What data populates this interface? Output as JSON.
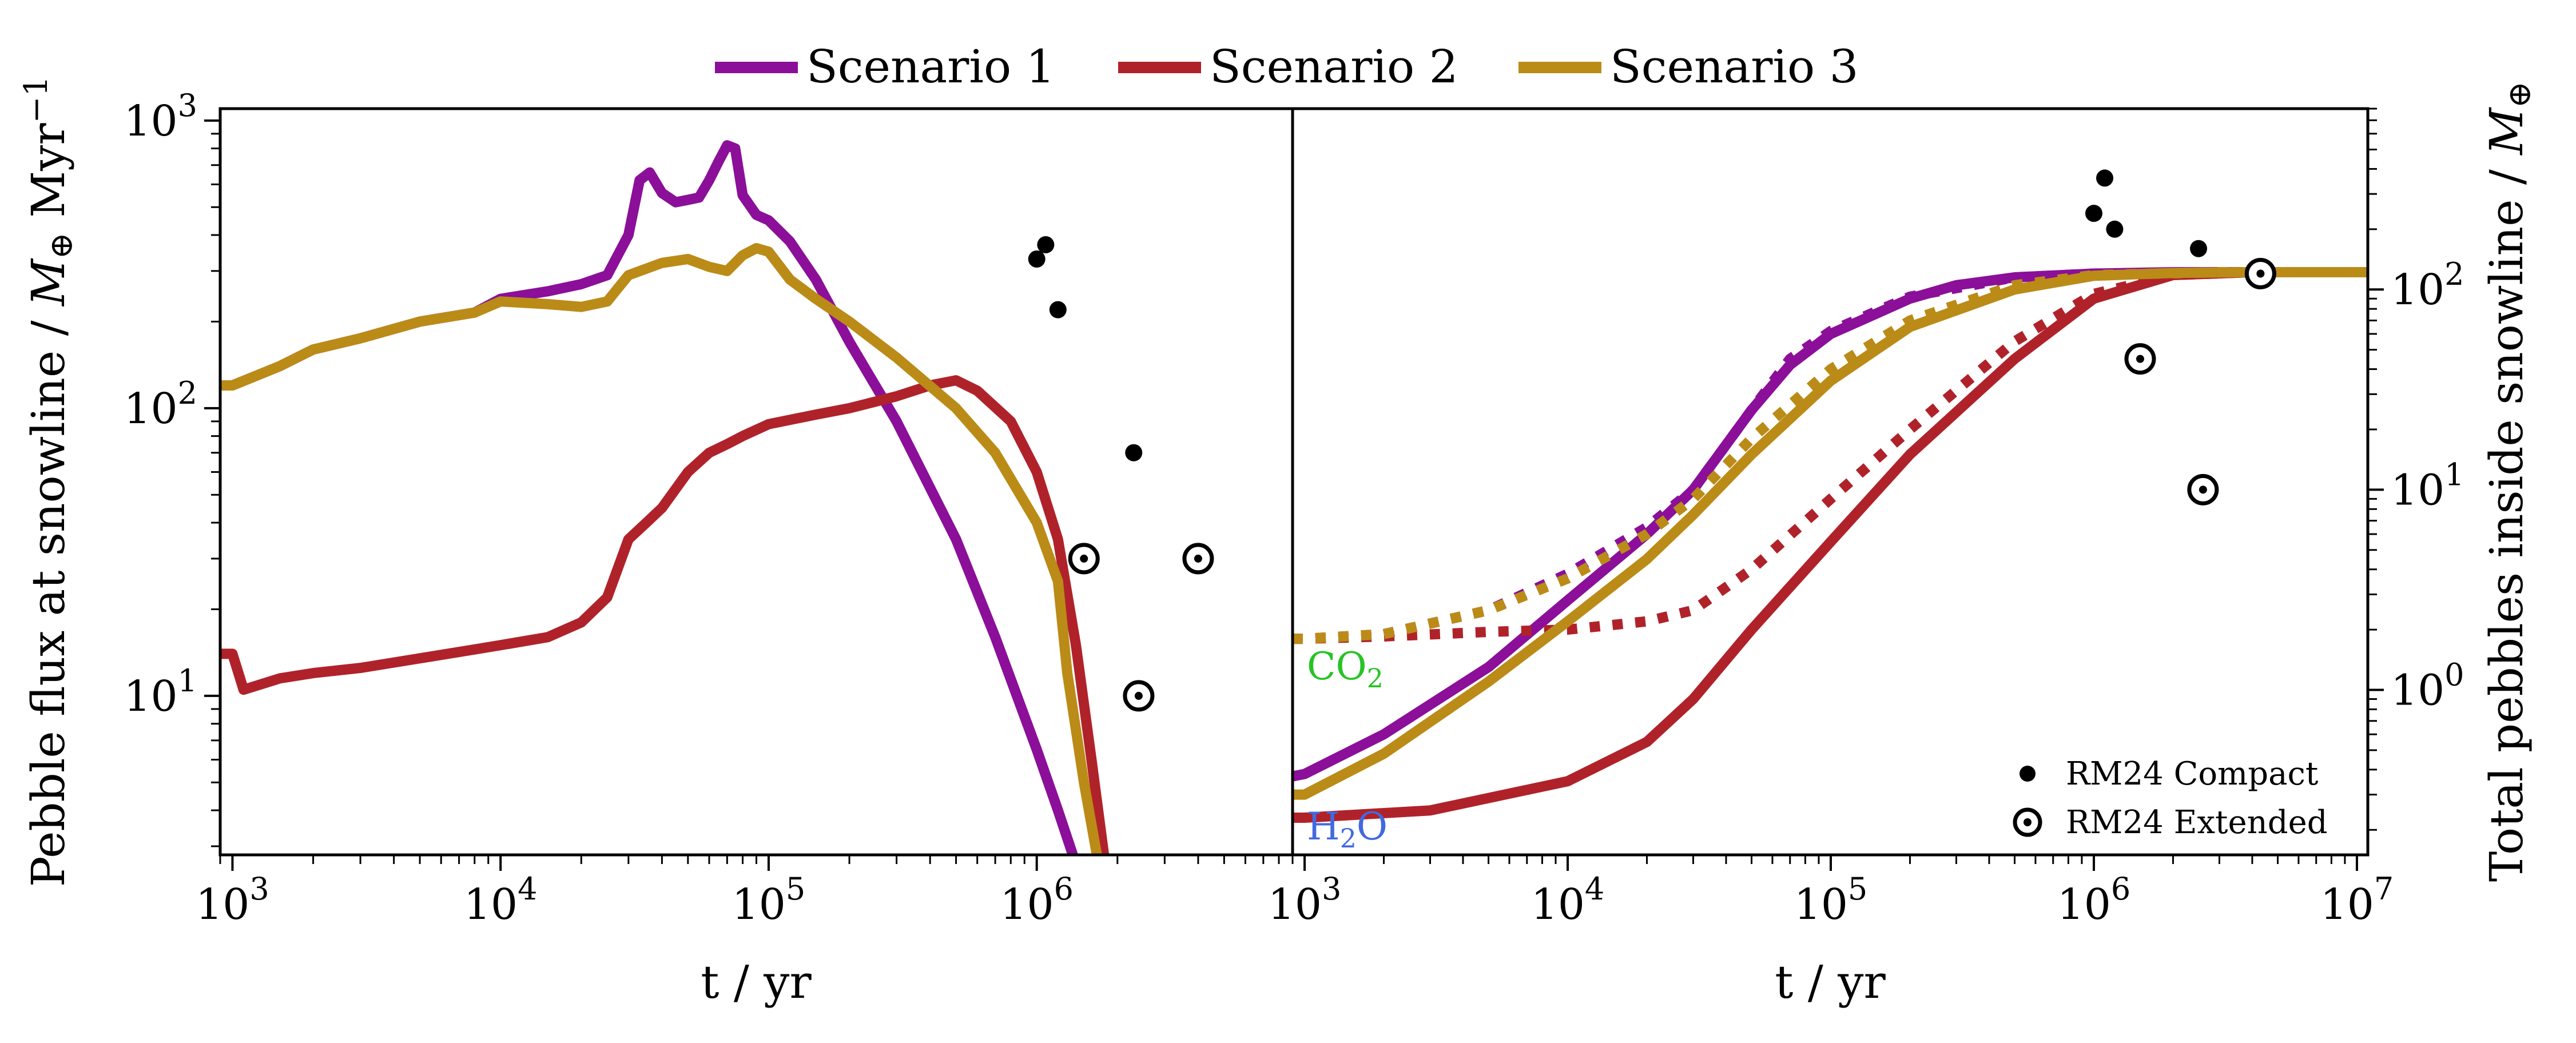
{
  "chart_data": [
    {
      "type": "line",
      "panel": "left",
      "xlabel": "t / yr",
      "ylabel": "Pebble flux at snowline / M⊕ Myr⁻¹",
      "xscale": "log",
      "yscale": "log",
      "xlim": [
        900,
        9000000
      ],
      "ylim": [
        2.8,
        1100
      ],
      "x_ticks": [
        {
          "value": 1000,
          "exp": "3"
        },
        {
          "value": 10000,
          "exp": "4"
        },
        {
          "value": 100000,
          "exp": "5"
        },
        {
          "value": 1000000,
          "exp": "6"
        }
      ],
      "y_ticks": [
        {
          "value": 10,
          "exp": "1"
        },
        {
          "value": 100,
          "exp": "2"
        },
        {
          "value": 1000,
          "exp": "3"
        }
      ],
      "series": [
        {
          "name": "Scenario 1",
          "color": "#8b0f99",
          "style": "solid",
          "x": [
            900,
            1000,
            1500,
            2000,
            3000,
            5000,
            8000,
            10000,
            15000,
            20000,
            25000,
            30000,
            33000,
            36000,
            40000,
            45000,
            50000,
            55000,
            60000,
            65000,
            70000,
            75000,
            80000,
            90000,
            100000,
            120000,
            150000,
            200000,
            300000,
            500000,
            700000,
            1000000,
            1200000,
            1400000
          ],
          "y": [
            120,
            120,
            140,
            160,
            175,
            200,
            215,
            240,
            255,
            270,
            290,
            400,
            620,
            660,
            560,
            520,
            530,
            540,
            620,
            720,
            820,
            800,
            550,
            470,
            450,
            380,
            280,
            170,
            90,
            35,
            16,
            6.5,
            4,
            2.6
          ]
        },
        {
          "name": "Scenario 2",
          "color": "#b0222a",
          "style": "solid",
          "x": [
            900,
            1000,
            1100,
            1500,
            2000,
            3000,
            5000,
            8000,
            10000,
            15000,
            20000,
            25000,
            30000,
            35000,
            40000,
            50000,
            60000,
            70000,
            80000,
            100000,
            150000,
            200000,
            300000,
            400000,
            500000,
            600000,
            800000,
            1000000,
            1200000,
            1400000,
            1600000,
            1800000
          ],
          "y": [
            14,
            14,
            10.5,
            11.5,
            12,
            12.5,
            13.5,
            14.5,
            15,
            16,
            18,
            22,
            35,
            40,
            45,
            60,
            70,
            75,
            80,
            88,
            95,
            100,
            110,
            120,
            125,
            115,
            90,
            60,
            35,
            15,
            6,
            2.6
          ]
        },
        {
          "name": "Scenario 3",
          "color": "#bb8b17",
          "style": "solid",
          "x": [
            900,
            1000,
            1500,
            2000,
            3000,
            5000,
            8000,
            10000,
            15000,
            20000,
            25000,
            30000,
            40000,
            50000,
            60000,
            70000,
            80000,
            90000,
            100000,
            120000,
            150000,
            200000,
            300000,
            500000,
            700000,
            1000000,
            1200000,
            1300000,
            1500000,
            1700000
          ],
          "y": [
            120,
            120,
            140,
            160,
            175,
            200,
            215,
            235,
            230,
            225,
            235,
            290,
            320,
            330,
            310,
            300,
            340,
            360,
            350,
            280,
            240,
            200,
            150,
            100,
            70,
            40,
            25,
            12,
            5,
            2.6
          ]
        }
      ],
      "markers": {
        "compact": {
          "x": [
            1000000,
            1080000,
            1200000,
            2300000
          ],
          "y": [
            330,
            370,
            220,
            70
          ]
        },
        "extended": {
          "x": [
            1500000,
            2400000,
            4000000
          ],
          "y": [
            30,
            10,
            30
          ]
        }
      }
    },
    {
      "type": "line",
      "panel": "right",
      "xlabel": "t / yr",
      "ylabel": "Total pebbles inside snowline / M⊕",
      "xscale": "log",
      "yscale": "log",
      "xlim": [
        900,
        11000000
      ],
      "ylim": [
        0.15,
        800
      ],
      "x_ticks": [
        {
          "value": 1000,
          "exp": "3"
        },
        {
          "value": 10000,
          "exp": "4"
        },
        {
          "value": 100000,
          "exp": "5"
        },
        {
          "value": 1000000,
          "exp": "6"
        },
        {
          "value": 10000000,
          "exp": "7"
        }
      ],
      "y_ticks": [
        {
          "value": 1,
          "exp": "0"
        },
        {
          "value": 10,
          "exp": "1"
        },
        {
          "value": 100,
          "exp": "2"
        }
      ],
      "series": [
        {
          "name": "Scenario 1 (H2O)",
          "color": "#8b0f99",
          "style": "solid",
          "x": [
            900,
            1000,
            2000,
            5000,
            10000,
            20000,
            30000,
            50000,
            70000,
            100000,
            200000,
            300000,
            500000,
            1000000,
            2000000,
            5000000,
            11000000
          ],
          "y": [
            0.37,
            0.38,
            0.6,
            1.3,
            2.8,
            6,
            10,
            25,
            42,
            60,
            90,
            105,
            115,
            120,
            122,
            122,
            122
          ]
        },
        {
          "name": "Scenario 1 (CO2)",
          "color": "#8b0f99",
          "style": "dotted",
          "x": [
            900,
            1000,
            2000,
            5000,
            10000,
            20000,
            30000,
            50000,
            70000,
            100000,
            200000,
            500000,
            1000000,
            3000000,
            11000000
          ],
          "y": [
            1.8,
            1.8,
            1.9,
            2.5,
            3.8,
            6.5,
            10,
            25,
            45,
            62,
            92,
            115,
            120,
            122,
            122
          ]
        },
        {
          "name": "Scenario 2 (H2O)",
          "color": "#b0222a",
          "style": "solid",
          "x": [
            900,
            1000,
            3000,
            10000,
            20000,
            30000,
            50000,
            100000,
            200000,
            500000,
            1000000,
            2000000,
            4000000,
            11000000
          ],
          "y": [
            0.23,
            0.23,
            0.25,
            0.35,
            0.55,
            0.9,
            2,
            5.5,
            15,
            45,
            90,
            118,
            122,
            122
          ]
        },
        {
          "name": "Scenario 2 (CO2)",
          "color": "#b0222a",
          "style": "dotted",
          "x": [
            900,
            1000,
            2000,
            5000,
            10000,
            20000,
            30000,
            50000,
            100000,
            200000,
            500000,
            1000000,
            2000000,
            4000000,
            11000000
          ],
          "y": [
            1.8,
            1.8,
            1.85,
            1.95,
            2.0,
            2.2,
            2.5,
            4,
            9,
            20,
            55,
            95,
            118,
            122,
            122
          ]
        },
        {
          "name": "Scenario 3 (H2O)",
          "color": "#bb8b17",
          "style": "solid",
          "x": [
            900,
            1000,
            2000,
            5000,
            10000,
            20000,
            30000,
            50000,
            100000,
            200000,
            500000,
            1000000,
            2000000,
            4000000,
            11000000
          ],
          "y": [
            0.3,
            0.3,
            0.48,
            1.1,
            2.2,
            4.5,
            7.5,
            15,
            35,
            65,
            100,
            117,
            121,
            122,
            122
          ]
        },
        {
          "name": "Scenario 3 (CO2)",
          "color": "#bb8b17",
          "style": "dotted",
          "x": [
            900,
            1000,
            2000,
            5000,
            10000,
            20000,
            30000,
            50000,
            100000,
            200000,
            500000,
            1000000,
            3000000,
            11000000
          ],
          "y": [
            1.8,
            1.8,
            1.9,
            2.5,
            3.6,
            6,
            9,
            18,
            40,
            70,
            105,
            118,
            122,
            122
          ]
        }
      ],
      "markers": {
        "compact": {
          "x": [
            1000000,
            1100000,
            1200000,
            2500000
          ],
          "y": [
            240,
            360,
            200,
            160
          ]
        },
        "extended": {
          "x": [
            1500000,
            2600000,
            4300000
          ],
          "y": [
            45,
            10,
            120
          ]
        }
      },
      "annotations": [
        {
          "text_base": "CO",
          "text_sub": "2",
          "color": "#27c327"
        },
        {
          "text_base": "H",
          "text_sub": "2",
          "text_tail": "O",
          "color": "#4169e1"
        }
      ]
    }
  ],
  "legend": {
    "entries": [
      {
        "label": "Scenario 1",
        "color": "#8b0f99"
      },
      {
        "label": "Scenario 2",
        "color": "#b0222a"
      },
      {
        "label": "Scenario 3",
        "color": "#bb8b17"
      }
    ],
    "placement": "top-center"
  },
  "marker_legend": {
    "compact_label": "RM24 Compact",
    "extended_label": "RM24 Extended",
    "placement": "bottom-right"
  },
  "labels": {
    "left_x": "t / yr",
    "right_x": "t / yr",
    "left_y_main": "Pebble flux at snowline / ",
    "left_y_M": "M",
    "left_y_unit": " Myr",
    "left_y_exp": "−1",
    "right_y_main": "Total pebbles inside snowline / ",
    "right_y_M": "M",
    "tick_base": "10",
    "oplus": "⊕"
  }
}
